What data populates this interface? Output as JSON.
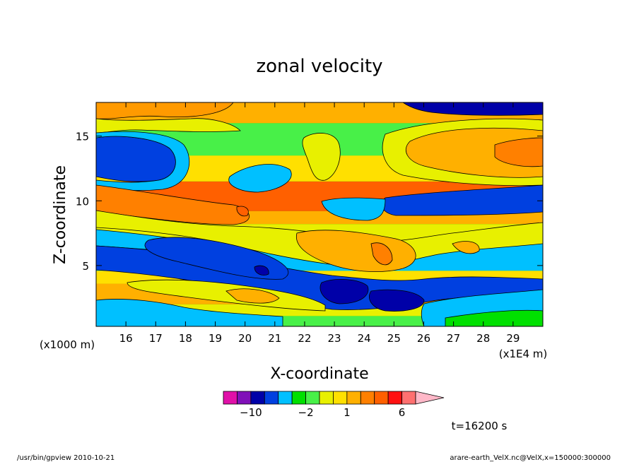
{
  "chart_data": {
    "type": "heatmap",
    "title": "zonal velocity",
    "xlabel": "X-coordinate",
    "ylabel": "Z-coordinate",
    "x_unit": "(x1E4 m)",
    "y_unit": "(x1000 m)",
    "xlim": [
      15.0,
      30.0
    ],
    "ylim": [
      0.3,
      17.6
    ],
    "x_ticks": [
      16,
      17,
      18,
      19,
      20,
      21,
      22,
      23,
      24,
      25,
      26,
      27,
      28,
      29
    ],
    "y_ticks": [
      5,
      10,
      15
    ],
    "colorbar": {
      "levels": [
        -14,
        -12,
        -10,
        -8,
        -6,
        -4,
        -2,
        -1,
        0,
        1,
        2,
        3,
        4,
        6,
        8,
        10
      ],
      "labeled_ticks": [
        -10,
        -2,
        1,
        6
      ],
      "colors": [
        "#e010a8",
        "#8010b8",
        "#0000a8",
        "#0040e0",
        "#00c0ff",
        "#00e000",
        "#48f048",
        "#e8f000",
        "#ffe000",
        "#ffb000",
        "#ff8000",
        "#ff6000",
        "#ff1010",
        "#ff7070",
        "#ffb8c8"
      ]
    },
    "annotation": "t=16200 s",
    "footer_left": "/usr/bin/gpview   2010-10-21",
    "footer_right": "arare-earth_VelX.nc@VelX,x=150000:300000",
    "bands": [
      {
        "z0": 0.3,
        "z1": 1.1,
        "level": "-2"
      },
      {
        "z0": 1.1,
        "z1": 2.0,
        "level": "-1"
      },
      {
        "z0": 2.0,
        "z1": 3.6,
        "level": "1"
      },
      {
        "z0": 3.6,
        "z1": 4.6,
        "level": "0"
      },
      {
        "z0": 4.6,
        "z1": 6.8,
        "level": "-6"
      },
      {
        "z0": 6.8,
        "z1": 8.2,
        "level": "-1"
      },
      {
        "z0": 8.2,
        "z1": 9.2,
        "level": "1"
      },
      {
        "z0": 9.2,
        "z1": 11.5,
        "level": "3"
      },
      {
        "z0": 11.5,
        "z1": 13.5,
        "level": "0"
      },
      {
        "z0": 13.5,
        "z1": 16.0,
        "level": "-2"
      },
      {
        "z0": 16.0,
        "z1": 17.6,
        "level": "1"
      }
    ]
  }
}
